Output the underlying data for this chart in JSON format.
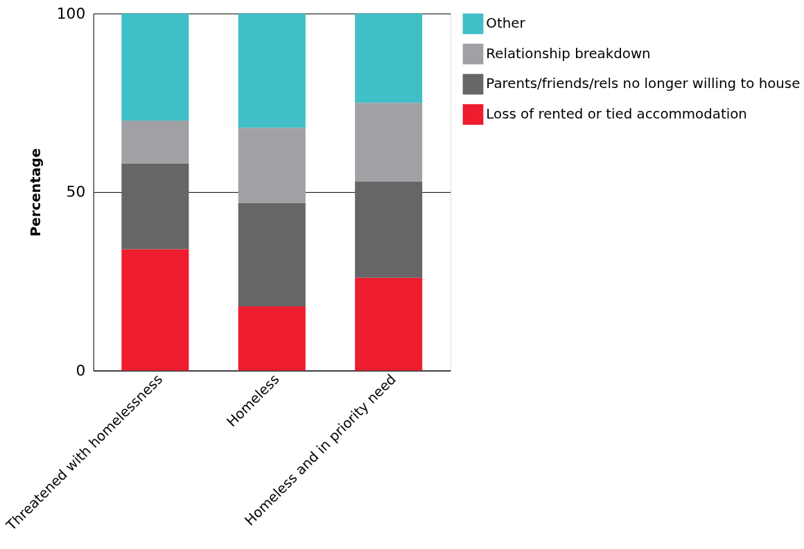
{
  "chart_data": {
    "type": "bar",
    "stacked": true,
    "ylabel": "Percentage",
    "categories": [
      "Threatened with homelessness",
      "Homeless",
      "Homeless and in priority need"
    ],
    "series": [
      {
        "name": "Loss of rented or tied accommodation",
        "color": "#ed1c2e",
        "values": [
          34,
          18,
          26
        ]
      },
      {
        "name": "Parents/friends/rels no longer willing to house",
        "color": "#666666",
        "values": [
          24,
          29,
          27
        ]
      },
      {
        "name": "Relationship breakdown",
        "color": "#a1a1a5",
        "values": [
          12,
          21,
          22
        ]
      },
      {
        "name": "Other",
        "color": "#40bfc7",
        "values": [
          30,
          32,
          25
        ]
      }
    ],
    "ylim": [
      0,
      100
    ],
    "yticks": [
      0,
      50,
      100
    ],
    "grid": "y",
    "legend": "top right"
  }
}
